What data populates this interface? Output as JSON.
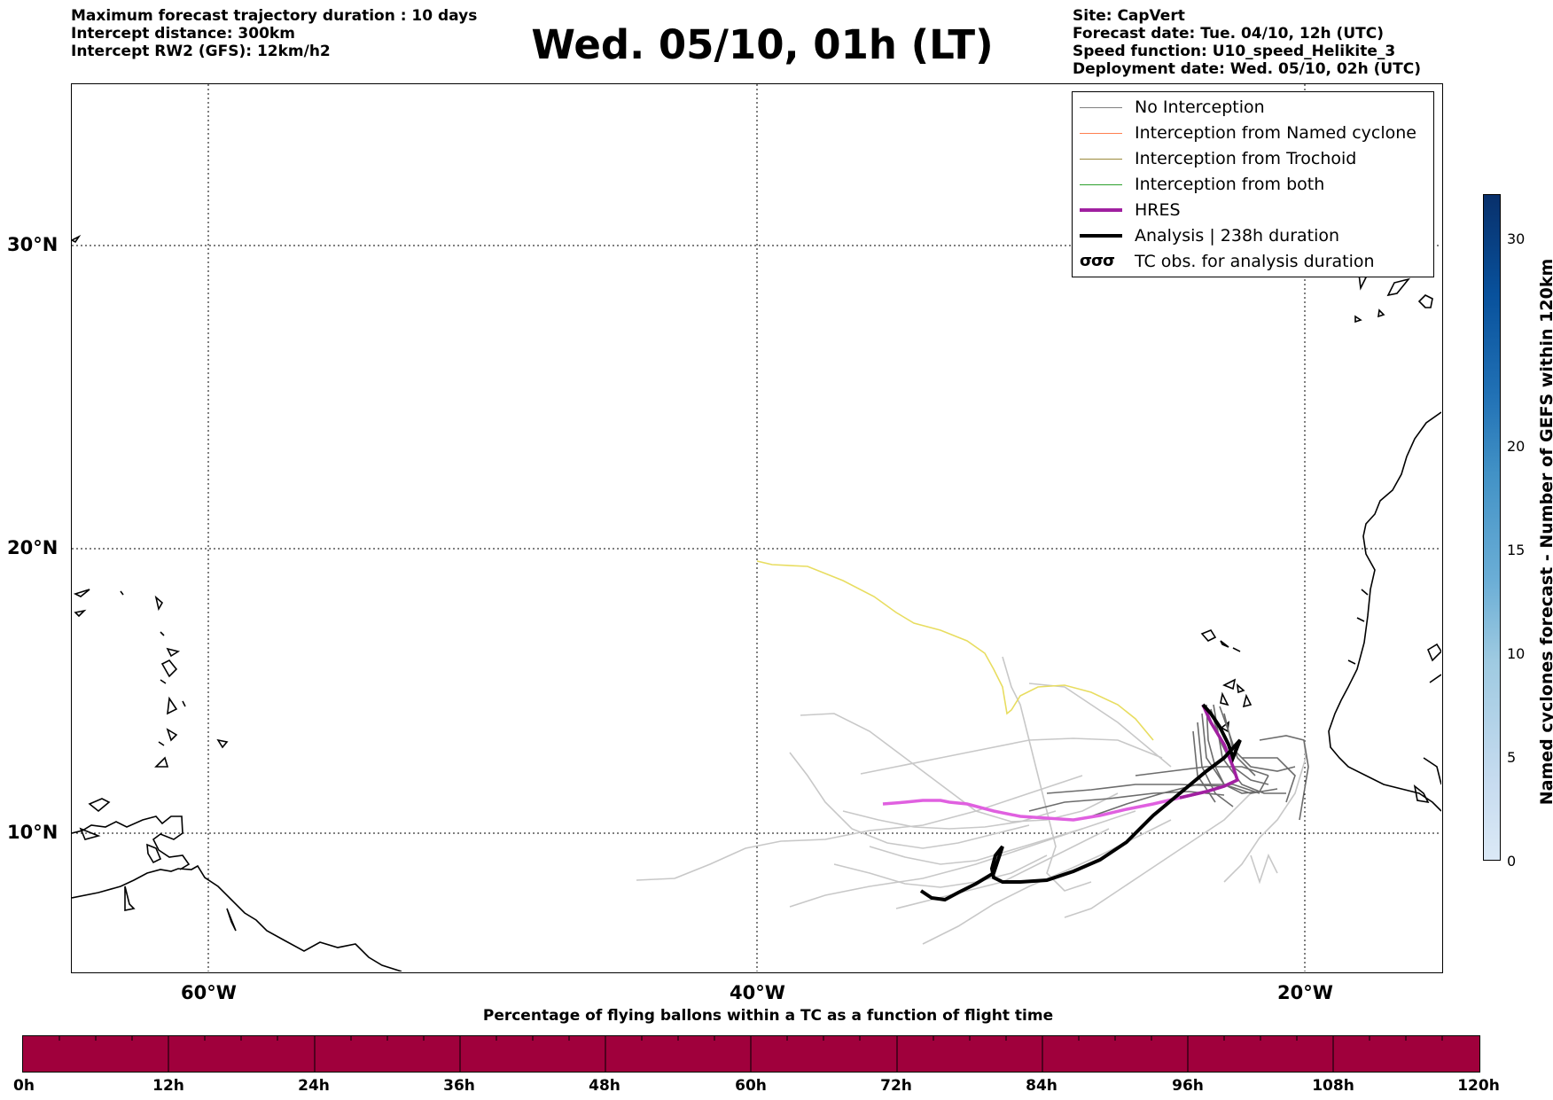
{
  "header_left": [
    "Maximum forecast trajectory duration : 10 days",
    "Intercept distance: 300km",
    "Intercept RW2 (GFS):  12km/h2"
  ],
  "title": "Wed. 05/10, 01h (LT)",
  "header_right": [
    "Site: CapVert",
    "Forecast date: Tue. 04/10, 12h (UTC)",
    "Speed function: U10_speed_Helikite_3",
    "Deployment date: Wed. 05/10, 02h (UTC)"
  ],
  "map": {
    "lon_range": [
      -65,
      15
    ],
    "lat_range": [
      5.5,
      35
    ],
    "lat_ticks": [
      "30°N",
      "20°N",
      "10°N"
    ],
    "lon_ticks": [
      "60°W",
      "40°W",
      "20°W"
    ]
  },
  "legend": {
    "items": [
      {
        "label": "No Interception",
        "color": "#808080"
      },
      {
        "label": "Interception from Named cyclone",
        "color": "#ff7f50"
      },
      {
        "label": "Interception from Trochoid",
        "color": "#9b8a3c"
      },
      {
        "label": "Interception from both",
        "color": "#2ca02c"
      },
      {
        "label": "HRES",
        "color": "#a020a0"
      },
      {
        "label": "Analysis | 238h duration",
        "color": "#000000"
      },
      {
        "label": "TC obs. for analysis duration",
        "icon": "tc-symbol-icon",
        "glyph": "σσσ"
      }
    ]
  },
  "colorbar_vertical": {
    "title": "Named cyclones forecast - Number of GEFS within 120km",
    "ticks": [
      "0",
      "5",
      "10",
      "15",
      "20",
      "30"
    ],
    "range": [
      0,
      32
    ]
  },
  "colorbar_horizontal": {
    "title": "Percentage of flying ballons within a TC as a function of flight time",
    "ticks": [
      "0h",
      "12h",
      "24h",
      "36h",
      "48h",
      "60h",
      "72h",
      "84h",
      "96h",
      "108h",
      "120h"
    ],
    "fill_color": "#a0003c"
  }
}
